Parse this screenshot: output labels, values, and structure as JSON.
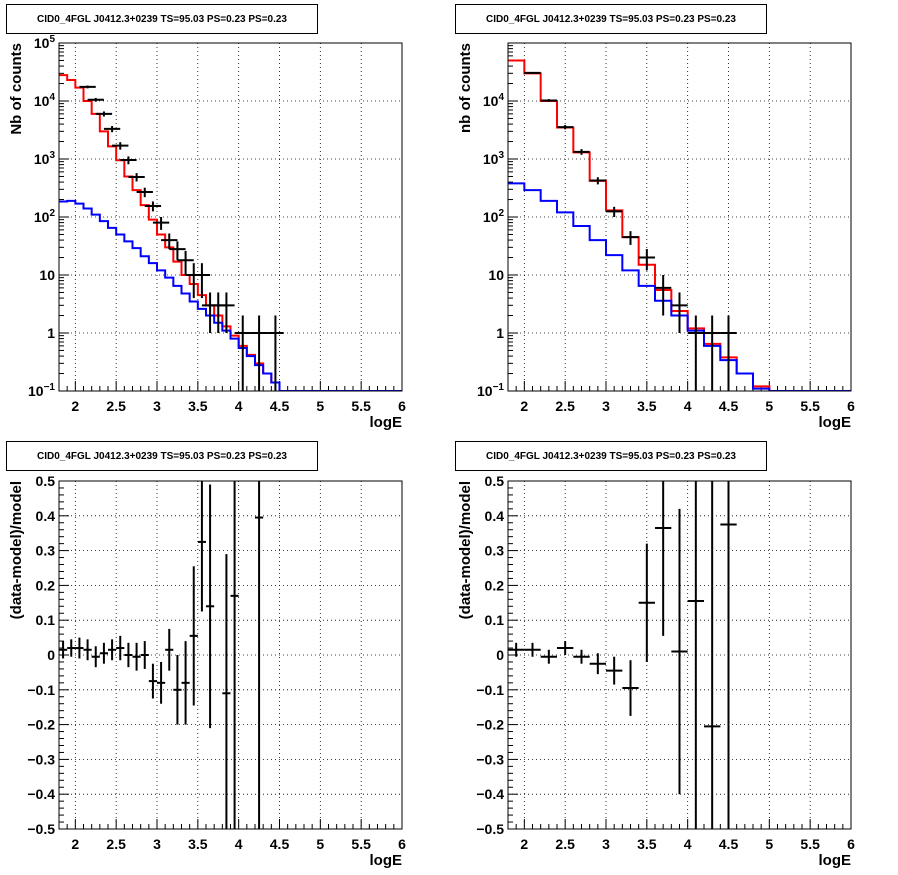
{
  "chart_data": [
    {
      "type": "line",
      "title": "CID0_4FGL J0412.3+0239 TS=95.03 PS=0.23 PS=0.23",
      "xlabel": "logE",
      "ylabel": "Nb of counts",
      "yscale": "log",
      "xlim": [
        1.8,
        6.0
      ],
      "ylim": [
        0.1,
        100000
      ],
      "xticks": [
        2,
        2.5,
        3,
        3.5,
        4,
        4.5,
        5,
        5.5,
        6
      ],
      "xtick_labels": [
        "2",
        "2.5",
        "3",
        "3.5",
        "4",
        "4.5",
        "5",
        "5.5",
        "6"
      ],
      "yticks": [
        0.1,
        1,
        10,
        100,
        1000,
        10000,
        100000
      ],
      "ytick_labels": [
        "10^-1",
        "1",
        "10",
        "10^2",
        "10^3",
        "10^4",
        "10^5"
      ],
      "grid": true,
      "bin_edges": [
        1.8,
        1.9,
        2.0,
        2.1,
        2.2,
        2.3,
        2.4,
        2.5,
        2.6,
        2.7,
        2.8,
        2.9,
        3.0,
        3.1,
        3.2,
        3.3,
        3.4,
        3.5,
        3.6,
        3.7,
        3.8,
        3.9,
        4.0,
        4.1,
        4.2,
        4.3,
        4.4,
        4.5,
        4.6,
        4.7,
        4.8,
        4.9,
        5.0,
        5.1,
        5.2,
        5.3,
        5.4,
        5.5,
        5.6,
        5.7,
        5.8,
        5.9,
        6.0
      ],
      "series": [
        {
          "color": "#ff0000",
          "style": "step",
          "values": [
            28000,
            23000,
            17000,
            10000,
            6000,
            3000,
            1650,
            950,
            500,
            290,
            160,
            90,
            50,
            30,
            17,
            10,
            7,
            4.5,
            3,
            2,
            1.3,
            0.9,
            0.6,
            0.42,
            0.3,
            0.2,
            0.14,
            0.1,
            0.1,
            0.1,
            0.1,
            0.1,
            0.1,
            0.1,
            0.1,
            0.1,
            0.1,
            0.1,
            0.1,
            0.1,
            0.1,
            0.1
          ]
        },
        {
          "color": "#0000ff",
          "style": "step",
          "values": [
            185,
            190,
            170,
            140,
            110,
            85,
            65,
            50,
            38,
            29,
            21,
            16,
            12,
            9,
            6.5,
            4.8,
            3.5,
            2.6,
            2,
            1.5,
            1.1,
            0.8,
            0.55,
            0.4,
            0.28,
            0.2,
            0.14,
            0.1,
            0.1,
            0.1,
            0.1,
            0.1,
            0.1,
            0.1,
            0.1,
            0.1,
            0.1,
            0.1,
            0.1,
            0.1,
            0.1,
            0.1
          ]
        },
        {
          "color": "#000000",
          "style": "errorbar",
          "points": [
            {
              "x": 2.15,
              "y": 17500,
              "err": 1000
            },
            {
              "x": 2.25,
              "y": 10500,
              "err": 800
            },
            {
              "x": 2.35,
              "y": 6000,
              "err": 600
            },
            {
              "x": 2.45,
              "y": 3300,
              "err": 400
            },
            {
              "x": 2.55,
              "y": 1700,
              "err": 250
            },
            {
              "x": 2.65,
              "y": 960,
              "err": 150
            },
            {
              "x": 2.75,
              "y": 490,
              "err": 80
            },
            {
              "x": 2.85,
              "y": 270,
              "err": 50
            },
            {
              "x": 2.95,
              "y": 155,
              "err": 30
            },
            {
              "x": 3.05,
              "y": 80,
              "err": 20
            },
            {
              "x": 3.15,
              "y": 40,
              "err": 12
            },
            {
              "x": 3.25,
              "y": 28,
              "err": 10
            },
            {
              "x": 3.35,
              "y": 18,
              "err": 8
            },
            {
              "x": 3.45,
              "y": 10,
              "err": 6
            },
            {
              "x": 3.55,
              "y": 10,
              "err": 6
            },
            {
              "x": 3.65,
              "y": 3,
              "err": 2
            },
            {
              "x": 3.75,
              "y": 3,
              "err": 2
            },
            {
              "x": 3.85,
              "y": 3,
              "err": 2
            },
            {
              "x": 4.05,
              "y": 1,
              "err": 1
            },
            {
              "x": 4.25,
              "y": 1,
              "err": 1
            },
            {
              "x": 4.45,
              "y": 1,
              "err": 1
            }
          ]
        }
      ]
    },
    {
      "type": "line",
      "title": "CID0_4FGL J0412.3+0239 TS=95.03 PS=0.23 PS=0.23",
      "xlabel": "logE",
      "ylabel": "nb of counts",
      "yscale": "log",
      "xlim": [
        1.8,
        6.0
      ],
      "ylim": [
        0.1,
        100000
      ],
      "xticks": [
        2,
        2.5,
        3,
        3.5,
        4,
        4.5,
        5,
        5.5,
        6
      ],
      "xtick_labels": [
        "2",
        "2.5",
        "3",
        "3.5",
        "4",
        "4.5",
        "5",
        "5.5",
        "6"
      ],
      "yticks": [
        0.1,
        1,
        10,
        100,
        1000,
        10000
      ],
      "ytick_labels": [
        "10^-1",
        "1",
        "10",
        "10^2",
        "10^3",
        "10^4"
      ],
      "grid": true,
      "bin_edges": [
        1.8,
        2.0,
        2.2,
        2.4,
        2.6,
        2.8,
        3.0,
        3.2,
        3.4,
        3.6,
        3.8,
        4.0,
        4.2,
        4.4,
        4.6,
        4.8,
        5.0,
        5.2,
        5.4,
        5.6,
        5.8,
        6.0
      ],
      "series": [
        {
          "color": "#ff0000",
          "style": "step",
          "values": [
            50000,
            30000,
            10000,
            3500,
            1300,
            420,
            130,
            45,
            15,
            5.5,
            2.4,
            1.2,
            0.65,
            0.38,
            0.2,
            0.12,
            0.1,
            0.1,
            0.1,
            0.1,
            0.1
          ]
        },
        {
          "color": "#0000ff",
          "style": "step",
          "values": [
            380,
            290,
            190,
            120,
            70,
            40,
            22,
            12,
            6.5,
            3.6,
            2,
            1.1,
            0.6,
            0.34,
            0.2,
            0.11,
            0.1,
            0.1,
            0.1,
            0.1,
            0.1
          ]
        },
        {
          "color": "#000000",
          "style": "errorbar",
          "points": [
            {
              "x": 2.1,
              "y": 30500,
              "err": 1000
            },
            {
              "x": 2.3,
              "y": 10200,
              "err": 600
            },
            {
              "x": 2.5,
              "y": 3550,
              "err": 300
            },
            {
              "x": 2.7,
              "y": 1330,
              "err": 150
            },
            {
              "x": 2.9,
              "y": 425,
              "err": 60
            },
            {
              "x": 3.1,
              "y": 125,
              "err": 25
            },
            {
              "x": 3.3,
              "y": 45,
              "err": 12
            },
            {
              "x": 3.5,
              "y": 20,
              "err": 8
            },
            {
              "x": 3.7,
              "y": 6,
              "err": 4
            },
            {
              "x": 3.9,
              "y": 3,
              "err": 2
            },
            {
              "x": 4.1,
              "y": 1,
              "err": 1
            },
            {
              "x": 4.3,
              "y": 1,
              "err": 1
            },
            {
              "x": 4.5,
              "y": 1,
              "err": 1
            }
          ]
        }
      ]
    },
    {
      "type": "scatter",
      "title": "CID0_4FGL J0412.3+0239 TS=95.03 PS=0.23 PS=0.23",
      "xlabel": "logE",
      "ylabel": "(data-model)/model",
      "xlim": [
        1.8,
        6.0
      ],
      "ylim": [
        -0.5,
        0.5
      ],
      "xticks": [
        2,
        2.5,
        3,
        3.5,
        4,
        4.5,
        5,
        5.5,
        6
      ],
      "xtick_labels": [
        "2",
        "2.5",
        "3",
        "3.5",
        "4",
        "4.5",
        "5",
        "5.5",
        "6"
      ],
      "yticks": [
        -0.5,
        -0.4,
        -0.3,
        -0.2,
        -0.1,
        0,
        0.1,
        0.2,
        0.3,
        0.4,
        0.5
      ],
      "ytick_labels": [
        "−0.5",
        "−0.4",
        "−0.3",
        "−0.2",
        "−0.1",
        "0",
        "0.1",
        "0.2",
        "0.3",
        "0.4",
        "0.5"
      ],
      "grid": true,
      "xerr": 0.05,
      "points": [
        {
          "x": 1.85,
          "y": 0.015,
          "err": 0.025
        },
        {
          "x": 1.95,
          "y": 0.02,
          "err": 0.025
        },
        {
          "x": 2.05,
          "y": 0.02,
          "err": 0.03
        },
        {
          "x": 2.15,
          "y": 0.015,
          "err": 0.03
        },
        {
          "x": 2.25,
          "y": -0.005,
          "err": 0.03
        },
        {
          "x": 2.35,
          "y": 0.005,
          "err": 0.03
        },
        {
          "x": 2.45,
          "y": 0.015,
          "err": 0.03
        },
        {
          "x": 2.55,
          "y": 0.02,
          "err": 0.035
        },
        {
          "x": 2.65,
          "y": 0.0,
          "err": 0.035
        },
        {
          "x": 2.75,
          "y": -0.005,
          "err": 0.04
        },
        {
          "x": 2.85,
          "y": 0.0,
          "err": 0.04
        },
        {
          "x": 2.95,
          "y": -0.075,
          "err": 0.05
        },
        {
          "x": 3.05,
          "y": -0.08,
          "err": 0.06
        },
        {
          "x": 3.15,
          "y": 0.015,
          "err": 0.06
        },
        {
          "x": 3.25,
          "y": -0.1,
          "err": 0.1
        },
        {
          "x": 3.35,
          "y": -0.08,
          "err": 0.12
        },
        {
          "x": 3.45,
          "y": 0.055,
          "err": 0.2
        },
        {
          "x": 3.55,
          "y": 0.325,
          "err": 0.2
        },
        {
          "x": 3.65,
          "y": 0.14,
          "err": 0.35
        },
        {
          "x": 3.85,
          "y": -0.11,
          "err": 0.4
        },
        {
          "x": 3.95,
          "y": 0.17,
          "err": 0.8
        },
        {
          "x": 4.25,
          "y": 0.395,
          "err": 1.5
        }
      ]
    },
    {
      "type": "scatter",
      "title": "CID0_4FGL J0412.3+0239 TS=95.03 PS=0.23 PS=0.23",
      "xlabel": "logE",
      "ylabel": "(data-model)/model",
      "xlim": [
        1.8,
        6.0
      ],
      "ylim": [
        -0.5,
        0.5
      ],
      "xticks": [
        2,
        2.5,
        3,
        3.5,
        4,
        4.5,
        5,
        5.5,
        6
      ],
      "xtick_labels": [
        "2",
        "2.5",
        "3",
        "3.5",
        "4",
        "4.5",
        "5",
        "5.5",
        "6"
      ],
      "yticks": [
        -0.5,
        -0.4,
        -0.3,
        -0.2,
        -0.1,
        0,
        0.1,
        0.2,
        0.3,
        0.4,
        0.5
      ],
      "ytick_labels": [
        "−0.5",
        "−0.4",
        "−0.3",
        "−0.2",
        "−0.1",
        "0",
        "0.1",
        "0.2",
        "0.3",
        "0.4",
        "0.5"
      ],
      "grid": true,
      "xerr": 0.1,
      "points": [
        {
          "x": 1.9,
          "y": 0.015,
          "err": 0.02
        },
        {
          "x": 2.1,
          "y": 0.015,
          "err": 0.02
        },
        {
          "x": 2.3,
          "y": -0.005,
          "err": 0.02
        },
        {
          "x": 2.5,
          "y": 0.02,
          "err": 0.02
        },
        {
          "x": 2.7,
          "y": -0.005,
          "err": 0.02
        },
        {
          "x": 2.9,
          "y": -0.025,
          "err": 0.03
        },
        {
          "x": 3.1,
          "y": -0.045,
          "err": 0.04
        },
        {
          "x": 3.3,
          "y": -0.095,
          "err": 0.08
        },
        {
          "x": 3.5,
          "y": 0.15,
          "err": 0.17
        },
        {
          "x": 3.7,
          "y": 0.365,
          "err": 0.31
        },
        {
          "x": 3.9,
          "y": 0.01,
          "err": 0.41
        },
        {
          "x": 4.1,
          "y": 0.155,
          "err": 1.0
        },
        {
          "x": 4.3,
          "y": -0.205,
          "err": 1.3
        },
        {
          "x": 4.5,
          "y": 0.375,
          "err": 1.5
        }
      ]
    }
  ]
}
